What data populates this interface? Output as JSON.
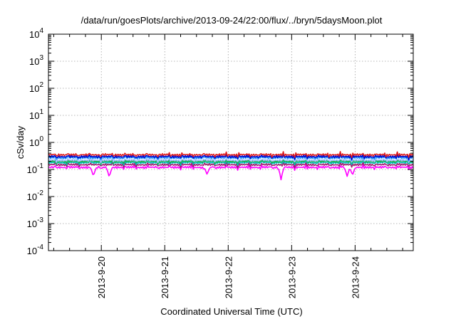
{
  "chart_data": {
    "type": "line",
    "title": "/data/run/goesPlots/archive/2013-09-24/22:00/flux/../bryn/5daysMoon.plot",
    "xlabel": "Coordinated Universal Time (UTC)",
    "ylabel": "cSv/day",
    "y_scale": "log",
    "ylim": [
      0.0001,
      10000
    ],
    "xlim": [
      "2013-09-19T04:00",
      "2013-09-24T22:00"
    ],
    "x_ticks": [
      "2013-9-20",
      "2013-9-21",
      "2013-9-22",
      "2013-9-23",
      "2013-9-24"
    ],
    "y_ticks": [
      {
        "base": "10",
        "exp": "-4"
      },
      {
        "base": "10",
        "exp": "-3"
      },
      {
        "base": "10",
        "exp": "-2"
      },
      {
        "base": "10",
        "exp": "-1"
      },
      {
        "base": "10",
        "exp": "0"
      },
      {
        "base": "10",
        "exp": "1"
      },
      {
        "base": "10",
        "exp": "2"
      },
      {
        "base": "10",
        "exp": "3"
      },
      {
        "base": "10",
        "exp": "4"
      }
    ],
    "grid": true,
    "series": [
      {
        "color": "#ff00ff",
        "base": 0.12,
        "dips": [
          [
            "2013-09-19T21:00",
            0.055
          ],
          [
            "2013-09-20T03:00",
            0.05
          ],
          [
            "2013-09-21T16:00",
            0.065
          ],
          [
            "2013-09-22T20:00",
            0.04
          ],
          [
            "2013-09-23T21:00",
            0.055
          ],
          [
            "2013-09-23T23:00",
            0.06
          ]
        ]
      },
      {
        "color": "#a0206e",
        "base": 0.15,
        "dips": []
      },
      {
        "color": "#00c0c0",
        "base": 0.18,
        "dips": []
      },
      {
        "color": "#20b040",
        "base": 0.2,
        "dips": []
      },
      {
        "color": "#a0c0ff",
        "base": 0.22,
        "dips": []
      },
      {
        "color": "#1e90ff",
        "base": 0.27,
        "dips": []
      },
      {
        "color": "#0000cc",
        "base": 0.3,
        "dips": []
      },
      {
        "color": "#e02020",
        "base": 0.35,
        "dips": []
      }
    ]
  }
}
